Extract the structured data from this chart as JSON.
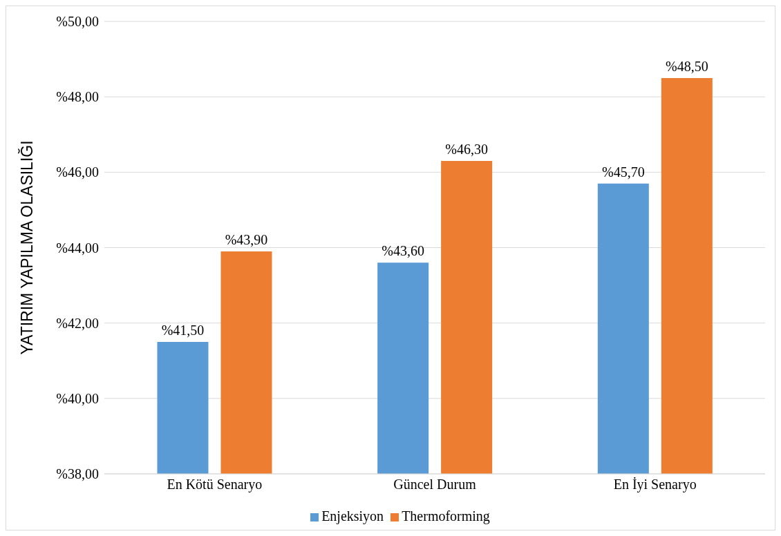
{
  "chart_data": {
    "type": "bar",
    "ylabel": "YATIRIM YAPILMA OLASILIĞI",
    "categories": [
      "En Kötü Senaryo",
      "Güncel Durum",
      "En İyi Senaryo"
    ],
    "series": [
      {
        "name": "Enjeksiyon",
        "color": "#5b9bd5",
        "values": [
          41.5,
          43.6,
          45.7
        ],
        "value_labels": [
          "%41,50",
          "%43,60",
          "%45,70"
        ]
      },
      {
        "name": "Thermoforming",
        "color": "#ed7d31",
        "values": [
          43.9,
          46.3,
          48.5
        ],
        "value_labels": [
          "%43,90",
          "%46,30",
          "%48,50"
        ]
      }
    ],
    "ylim": [
      38,
      50
    ],
    "yticks": [
      {
        "value": 38,
        "label": "%38,00"
      },
      {
        "value": 40,
        "label": "%40,00"
      },
      {
        "value": 42,
        "label": "%42,00"
      },
      {
        "value": 44,
        "label": "%44,00"
      },
      {
        "value": 46,
        "label": "%46,00"
      },
      {
        "value": 48,
        "label": "%48,00"
      },
      {
        "value": 50,
        "label": "%50,00"
      }
    ],
    "grid": "y",
    "legend": "bottom"
  }
}
